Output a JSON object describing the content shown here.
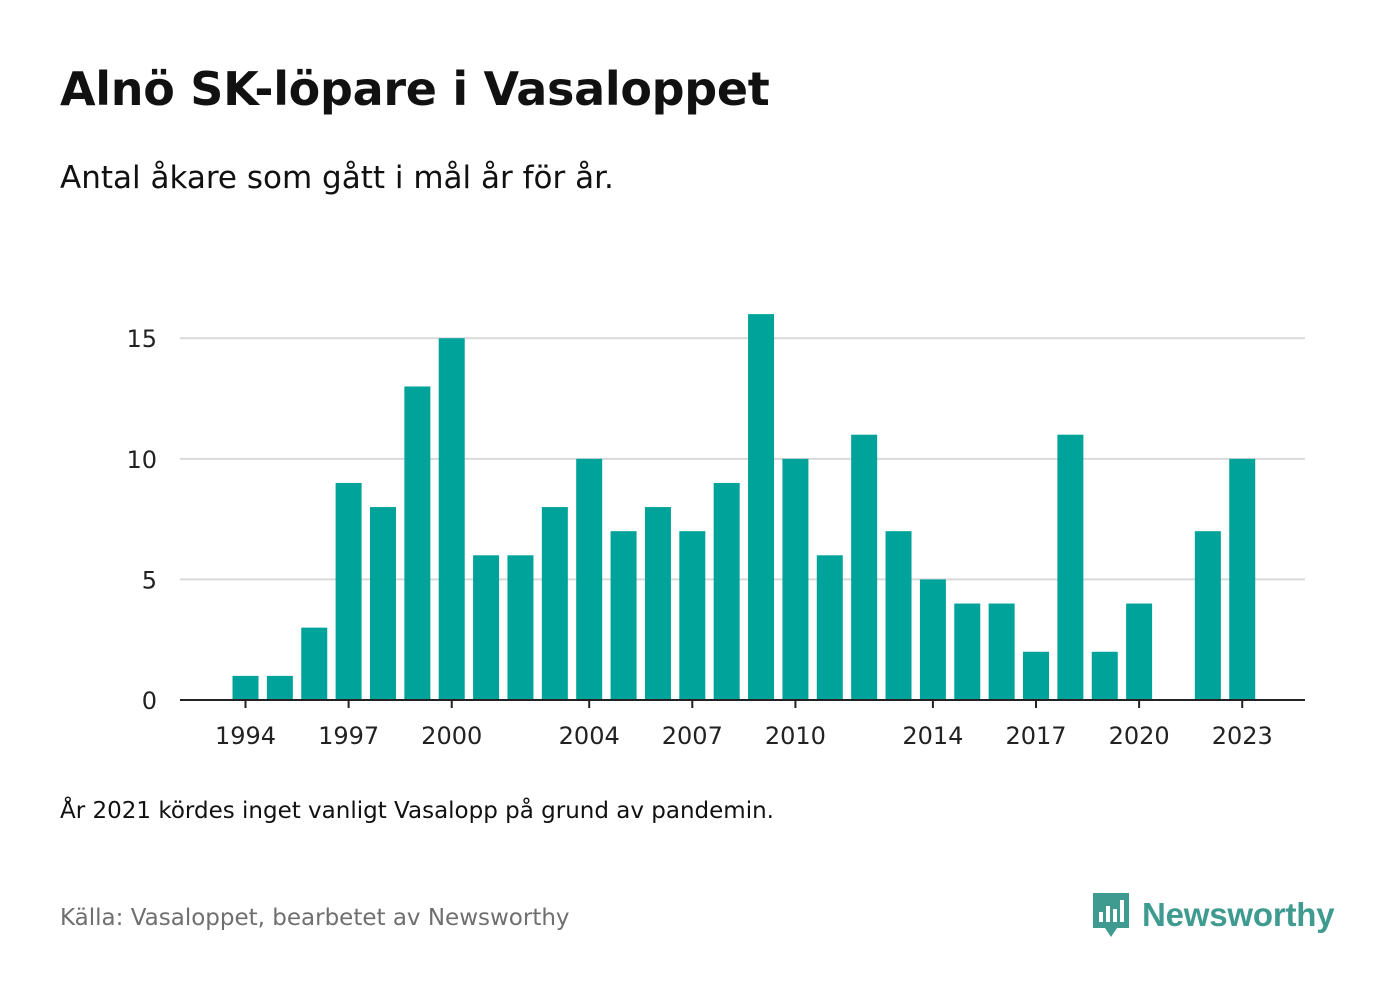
{
  "header": {
    "title": "Alnö SK-löpare i Vasaloppet",
    "subtitle": "Antal åkare som gått i mål år för år."
  },
  "footer": {
    "note": "År 2021 kördes inget vanligt Vasalopp på grund av pandemin.",
    "source": "Källa: Vasaloppet, bearbetet av Newsworthy",
    "brand": "Newsworthy"
  },
  "colors": {
    "bar": "#00a39a",
    "grid": "#d9d9d9",
    "axis": "#222222",
    "brand": "#3f9b8f"
  },
  "icons": {
    "brand_logo": "bar-chart-speech-bubble-icon"
  },
  "chart_data": {
    "type": "bar",
    "title": "Alnö SK-löpare i Vasaloppet",
    "subtitle": "Antal åkare som gått i mål år för år.",
    "xlabel": "",
    "ylabel": "",
    "ylim": [
      0,
      17
    ],
    "yticks": [
      0,
      5,
      10,
      15
    ],
    "xticks": [
      1994,
      1997,
      2000,
      2004,
      2007,
      2010,
      2014,
      2017,
      2020,
      2023
    ],
    "grid": true,
    "categories": [
      1994,
      1995,
      1996,
      1997,
      1998,
      1999,
      2000,
      2001,
      2002,
      2003,
      2004,
      2005,
      2006,
      2007,
      2008,
      2009,
      2010,
      2011,
      2012,
      2013,
      2014,
      2015,
      2016,
      2017,
      2018,
      2019,
      2020,
      2021,
      2022,
      2023
    ],
    "values": [
      1,
      1,
      3,
      9,
      8,
      13,
      15,
      6,
      6,
      8,
      10,
      7,
      8,
      7,
      9,
      16,
      10,
      6,
      11,
      7,
      5,
      4,
      4,
      2,
      11,
      2,
      4,
      null,
      7,
      10
    ]
  }
}
